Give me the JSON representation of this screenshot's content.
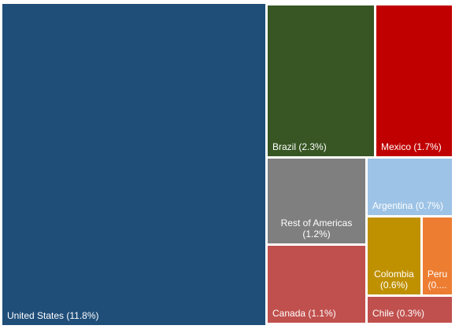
{
  "chart_data": {
    "type": "treemap",
    "items": [
      {
        "label": "United States (11.8%)",
        "name": "United States",
        "value": 11.8,
        "color": "#1f4e79"
      },
      {
        "label": "Brazil (2.3%)",
        "name": "Brazil",
        "value": 2.3,
        "color": "#375623"
      },
      {
        "label": "Mexico (1.7%)",
        "name": "Mexico",
        "value": 1.7,
        "color": "#c00000"
      },
      {
        "label": "Rest of Americas (1.2%)",
        "name": "Rest of Americas",
        "value": 1.2,
        "color": "#7f7f7f"
      },
      {
        "label": "Argentina (0.7%)",
        "name": "Argentina",
        "value": 0.7,
        "color": "#9dc3e6"
      },
      {
        "label": "Colombia (0.6%)",
        "name": "Colombia",
        "value": 0.6,
        "color": "#bf9000"
      },
      {
        "label": "Peru (0....",
        "name": "Peru",
        "value": null,
        "color": "#ed7d31"
      },
      {
        "label": "Canada (1.1%)",
        "name": "Canada",
        "value": 1.1,
        "color": "#c0504d"
      },
      {
        "label": "Chile (0.3%)",
        "name": "Chile",
        "value": 0.3,
        "color": "#c0504d"
      }
    ]
  }
}
